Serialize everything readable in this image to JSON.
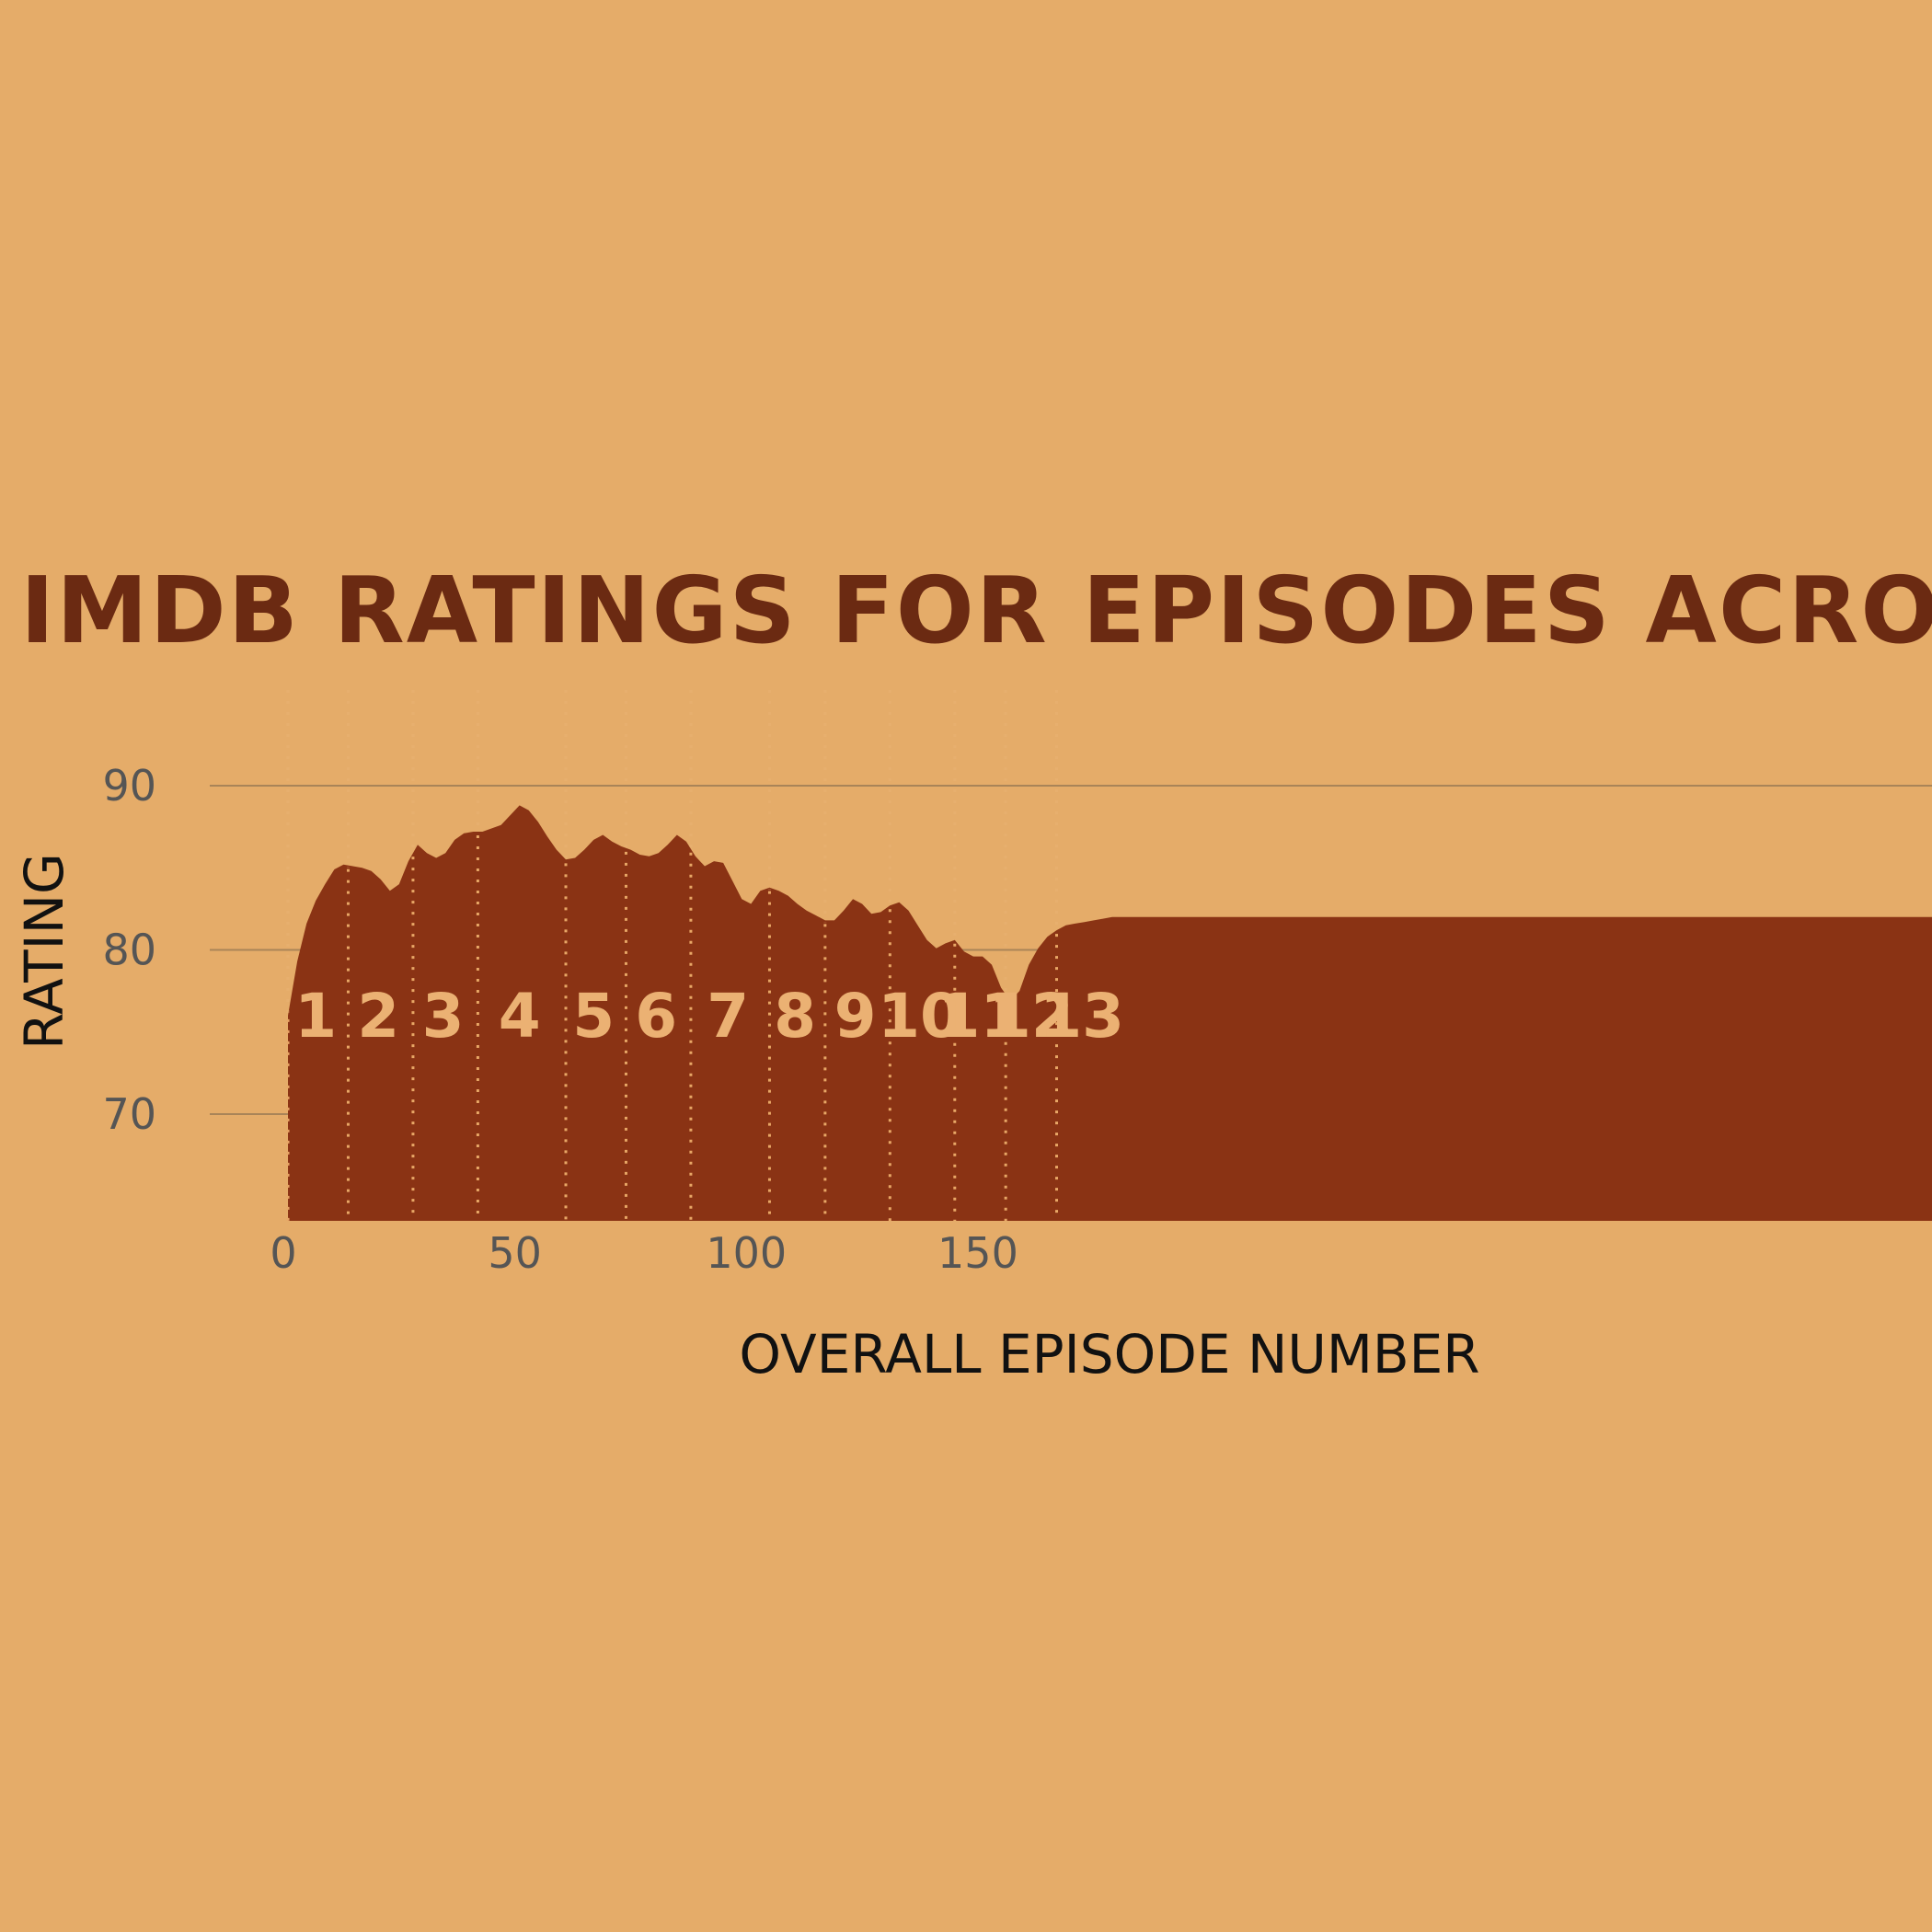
{
  "colors": {
    "background": "#E5AC69",
    "area_fill": "#8A3314",
    "title": "#6B2A12",
    "season_label": "#EBB173",
    "gridline": "#A98458",
    "tick_label": "#555555",
    "axis_title": "#111111"
  },
  "chart_data": {
    "type": "area",
    "title": "IMDB RATINGS FOR EPISODES ACROSS SEA",
    "xlabel": "OVERALL EPISODE NUMBER",
    "ylabel": "RATING",
    "xlim": [
      0,
      180
    ],
    "ylim": [
      63.5,
      92
    ],
    "x_ticks": [
      0,
      50,
      100,
      150
    ],
    "x_tick_labels": [
      "0",
      "50",
      "100",
      "150"
    ],
    "y_ticks": [
      70,
      80,
      90
    ],
    "y_tick_labels": [
      "70",
      "80",
      "90"
    ],
    "grid": "horizontal",
    "x": [
      1,
      3,
      5,
      7,
      9,
      11,
      13,
      15,
      17,
      19,
      21,
      23,
      25,
      27,
      29,
      31,
      33,
      35,
      37,
      39,
      41,
      43,
      45,
      47,
      49,
      51,
      53,
      55,
      57,
      59,
      61,
      63,
      65,
      67,
      69,
      71,
      73,
      75,
      77,
      79,
      81,
      83,
      85,
      87,
      89,
      91,
      93,
      95,
      97,
      99,
      101,
      103,
      105,
      107,
      109,
      111,
      113,
      115,
      117,
      119,
      121,
      123,
      125,
      127,
      129,
      131,
      133,
      135,
      137,
      139,
      141,
      143,
      145,
      147,
      149,
      151,
      153,
      155,
      157,
      159,
      161,
      163,
      165,
      167,
      169,
      171,
      173,
      175,
      177,
      179
    ],
    "y": [
      76,
      79.3,
      81.6,
      83,
      84,
      84.9,
      85.2,
      85.1,
      85,
      84.8,
      84.3,
      83.6,
      84,
      85.4,
      86.4,
      85.9,
      85.6,
      85.9,
      86.7,
      87.1,
      87.2,
      87.2,
      87.4,
      87.6,
      88.2,
      88.8,
      88.5,
      87.8,
      86.9,
      86.1,
      85.5,
      85.6,
      86.1,
      86.7,
      87,
      86.6,
      86.3,
      86.1,
      85.8,
      85.7,
      85.9,
      86.4,
      87,
      86.6,
      85.7,
      85.1,
      85.4,
      85.3,
      84.2,
      83.1,
      82.8,
      83.6,
      83.8,
      83.6,
      83.3,
      82.8,
      82.4,
      82.1,
      81.8,
      81.8,
      82.4,
      83.1,
      82.8,
      82.2,
      82.3,
      82.7,
      82.9,
      82.4,
      81.5,
      80.6,
      80.1,
      80.4,
      80.6,
      79.9,
      79.6,
      79.6,
      79.1,
      77.7,
      76.9,
      77.5,
      79.1,
      80.1,
      80.8,
      81.2,
      81.5,
      81.6,
      81.7,
      81.8,
      81.9,
      82
    ],
    "season_boundaries": [
      1,
      14,
      28,
      42,
      61,
      74,
      88,
      105,
      117,
      131,
      145,
      156,
      167
    ],
    "season_label_x": [
      7,
      20.5,
      34.5,
      51,
      67,
      80.5,
      96,
      110.5,
      123.5,
      137.5,
      150.5,
      161.5,
      172.5
    ],
    "season_label_y": 74.7,
    "seasons": [
      "1",
      "2",
      "3",
      "4",
      "5",
      "6",
      "7",
      "8",
      "9",
      "10",
      "11",
      "12",
      "13"
    ]
  }
}
